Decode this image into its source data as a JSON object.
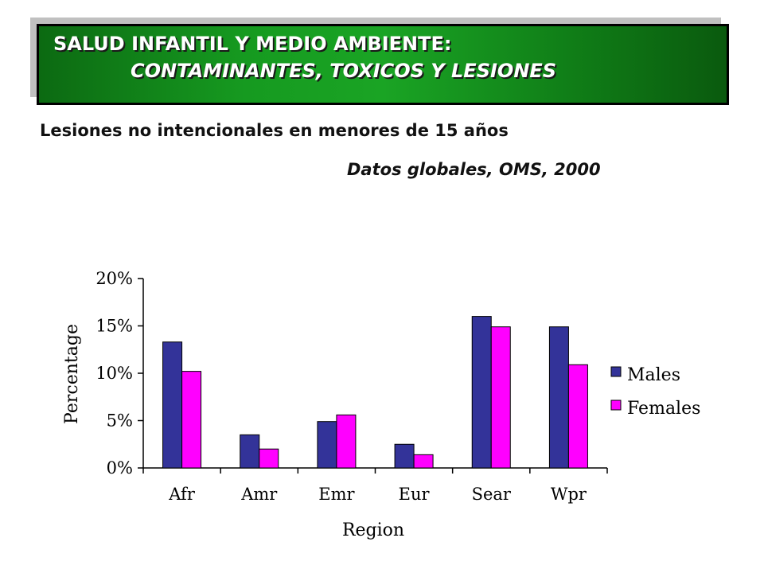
{
  "banner": {
    "line1": "SALUD INFANTIL Y  MEDIO AMBIENTE:",
    "line2": "CONTAMINANTES, TOXICOS Y  LESIONES"
  },
  "subtitle": "Lesiones no intencionales en menores de 15 años",
  "source": "Datos globales, OMS, 2000",
  "colors": {
    "males": "#333399",
    "females": "#ff00ff",
    "banner": "#169a20"
  },
  "chart_data": {
    "type": "bar",
    "categories": [
      "Afr",
      "Amr",
      "Emr",
      "Eur",
      "Sear",
      "Wpr"
    ],
    "series": [
      {
        "name": "Males",
        "values": [
          13.3,
          3.5,
          4.9,
          2.5,
          16.0,
          14.9
        ]
      },
      {
        "name": "Females",
        "values": [
          10.2,
          2.0,
          5.6,
          1.4,
          14.9,
          10.9
        ]
      }
    ],
    "ylabel": "Percentage",
    "xlabel": "Region",
    "ylim": [
      0,
      20
    ],
    "yticks": [
      "0%",
      "5%",
      "10%",
      "15%",
      "20%"
    ],
    "grid": false,
    "legend_position": "right"
  }
}
